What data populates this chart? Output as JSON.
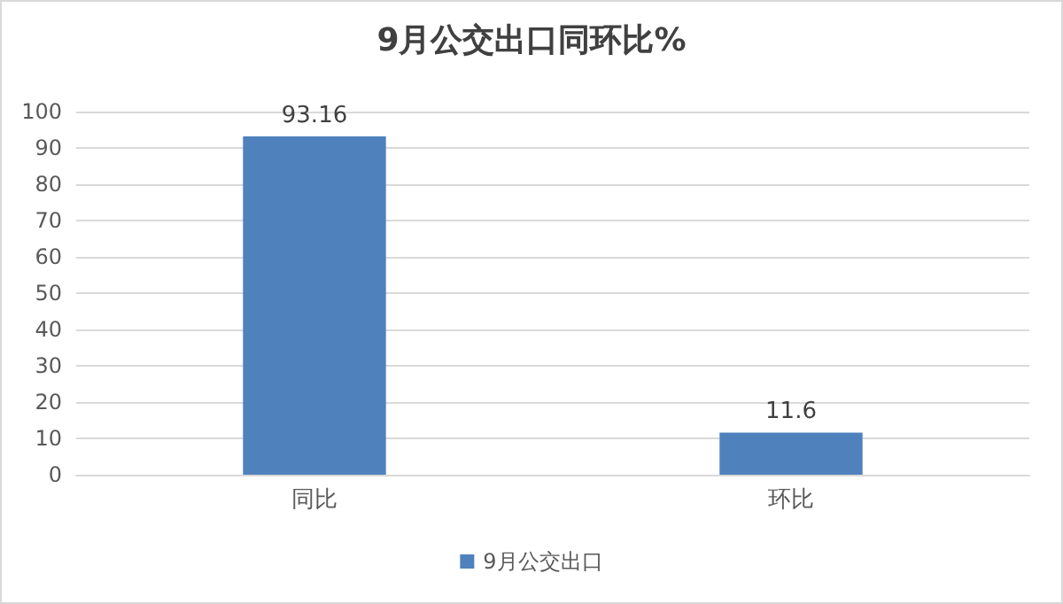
{
  "chart_data": {
    "type": "bar",
    "title": "9月公交出口同环比%",
    "categories": [
      "同比",
      "环比"
    ],
    "series": [
      {
        "name": "9月公交出口",
        "color": "#4f81bd",
        "values": [
          93.16,
          11.6
        ]
      }
    ],
    "ylim": [
      0,
      100
    ],
    "yticks": [
      0,
      10,
      20,
      30,
      40,
      50,
      60,
      70,
      80,
      90,
      100
    ],
    "grid": "y",
    "legend": "bottom",
    "data_labels": true
  }
}
